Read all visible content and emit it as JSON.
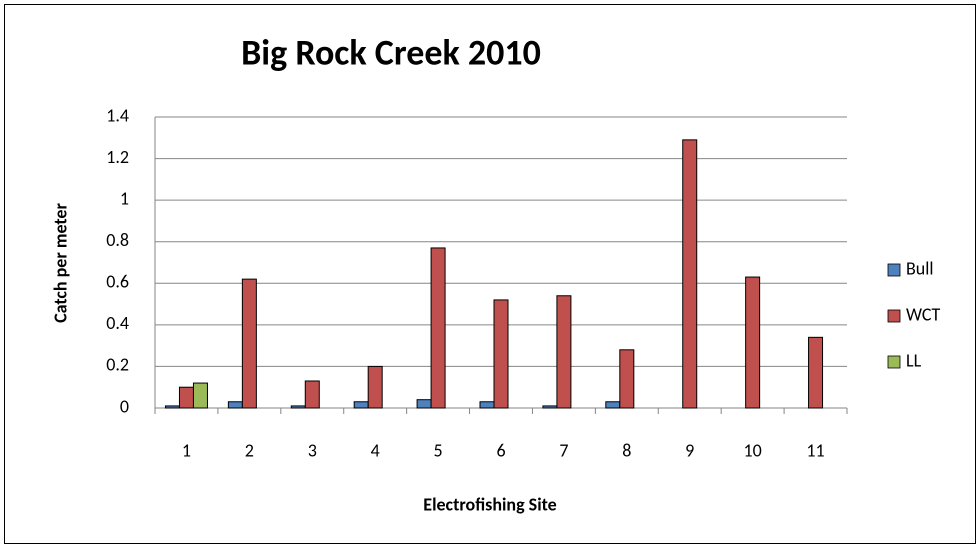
{
  "chart_data": {
    "type": "bar",
    "title": "Big Rock Creek 2010",
    "x_label": "Electrofishing Site",
    "y_label": "Catch per meter",
    "categories": [
      "1",
      "2",
      "3",
      "4",
      "5",
      "6",
      "7",
      "8",
      "9",
      "10",
      "11"
    ],
    "series": [
      {
        "name": "Bull",
        "color": "#4f81bd",
        "values": [
          0.01,
          0.03,
          0.01,
          0.03,
          0.04,
          0.03,
          0.01,
          0.03,
          0,
          0,
          0
        ]
      },
      {
        "name": "WCT",
        "color": "#c0504d",
        "values": [
          0.1,
          0.62,
          0.13,
          0.2,
          0.77,
          0.52,
          0.54,
          0.28,
          1.29,
          0.63,
          0.34
        ]
      },
      {
        "name": "LL",
        "color": "#9bbb59",
        "values": [
          0.12,
          0,
          0,
          0,
          0,
          0,
          0,
          0,
          0,
          0,
          0
        ]
      }
    ],
    "ylim": [
      0,
      1.4
    ],
    "yticks": [
      0,
      0.2,
      0.4,
      0.6,
      0.8,
      1,
      1.2,
      1.4
    ],
    "grid": true,
    "legend": "right"
  }
}
